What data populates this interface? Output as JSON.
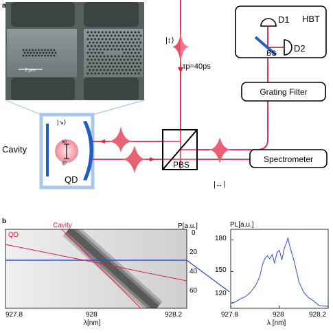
{
  "panel_a": {
    "label": "a",
    "sem_image": {
      "scale_bar": "2 µm"
    },
    "hbt": {
      "title": "HBT",
      "d1": "D1",
      "d2": "D2",
      "bs": "BS"
    },
    "grating_filter": "Grating Filter",
    "spectrometer": "Spectrometer",
    "pbs": "PBS",
    "pulse_label": "τp=40ps",
    "cavity_label": "Cavity",
    "qd_label": "QD",
    "state_e": "|e⟩",
    "state_g": "|g⟩",
    "pol_vertical": "|↕⟩",
    "pol_horizontal": "|↔⟩",
    "pol_diagonal": "|↘⟩",
    "colors": {
      "beam": "#e0213a",
      "frame": "#a9c8ec",
      "mirror": "#1f5fc4"
    }
  },
  "panel_b": {
    "label": "b",
    "map": {
      "xlabel": "λ[nm]",
      "ylabel": "P[a.u.]",
      "xticks": [
        "927.8",
        "928",
        "928.2"
      ],
      "yticks": [
        "0",
        "20",
        "40",
        "60"
      ],
      "line_labels": {
        "qd": "QD",
        "cavity": "Cavity"
      }
    },
    "spectrum": {
      "ylabel": "PL[a.u.]",
      "xlabel": "λ [nm]",
      "xticks": [
        "927.8",
        "928",
        "928.2"
      ],
      "yticks": [
        "180",
        "150",
        "120"
      ]
    }
  },
  "chart_data": {
    "type": "line",
    "title": "",
    "xlabel": "λ [nm]",
    "ylabel": "PL[a.u.]",
    "xlim": [
      927.8,
      928.2
    ],
    "ylim": [
      115,
      190
    ],
    "x": [
      927.8,
      927.82,
      927.84,
      927.86,
      927.88,
      927.9,
      927.91,
      927.92,
      927.93,
      927.94,
      927.95,
      927.96,
      927.97,
      927.98,
      927.99,
      928.0,
      928.01,
      928.02,
      928.03,
      928.035,
      928.04,
      928.05,
      928.06,
      928.07,
      928.08,
      928.09,
      928.1,
      928.12,
      928.14,
      928.16,
      928.18,
      928.2
    ],
    "series": [
      {
        "values": [
          120,
          121,
          124,
          126,
          130,
          136,
          140,
          146,
          156,
          162,
          165,
          162,
          166,
          158,
          168,
          170,
          161,
          172,
          178,
          182,
          176,
          168,
          160,
          150,
          140,
          135,
          130,
          125,
          122,
          118,
          117,
          117
        ]
      }
    ]
  }
}
